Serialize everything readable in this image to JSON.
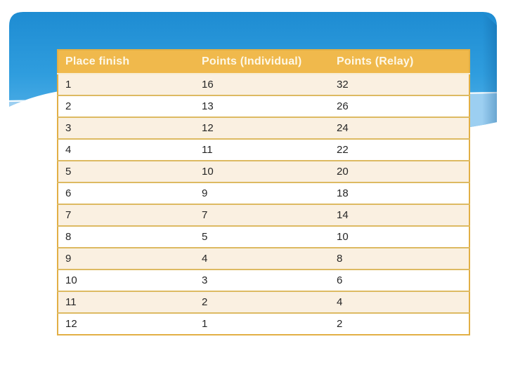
{
  "slide": {
    "colors": {
      "sky_top": "#1E8CD2",
      "sky_bottom": "#5FB7EA",
      "band": "#9CCFF1",
      "wave_line": "#FFFFFF",
      "edge_shade": "#0D5A96",
      "header_bg": "#F0B94C",
      "header_text": "#FDF8E8",
      "row_cream": "#FAF0E1",
      "row_white": "#FFFFFF",
      "border_outer": "#E2AF45",
      "border_row": "#DDBA62",
      "header_divider": "#F7ECD2",
      "body_text": "#262626"
    }
  },
  "table": {
    "columns": [
      "Place finish",
      "Points (Individual)",
      "Points (Relay)"
    ],
    "rows": [
      [
        "1",
        "16",
        "32"
      ],
      [
        "2",
        "13",
        "26"
      ],
      [
        "3",
        "12",
        "24"
      ],
      [
        "4",
        "11",
        "22"
      ],
      [
        "5",
        "10",
        "20"
      ],
      [
        "6",
        "9",
        "18"
      ],
      [
        "7",
        "7",
        "14"
      ],
      [
        "8",
        "5",
        "10"
      ],
      [
        "9",
        "4",
        "8"
      ],
      [
        "10",
        "3",
        "6"
      ],
      [
        "11",
        "2",
        "4"
      ],
      [
        "12",
        "1",
        "2"
      ]
    ]
  }
}
